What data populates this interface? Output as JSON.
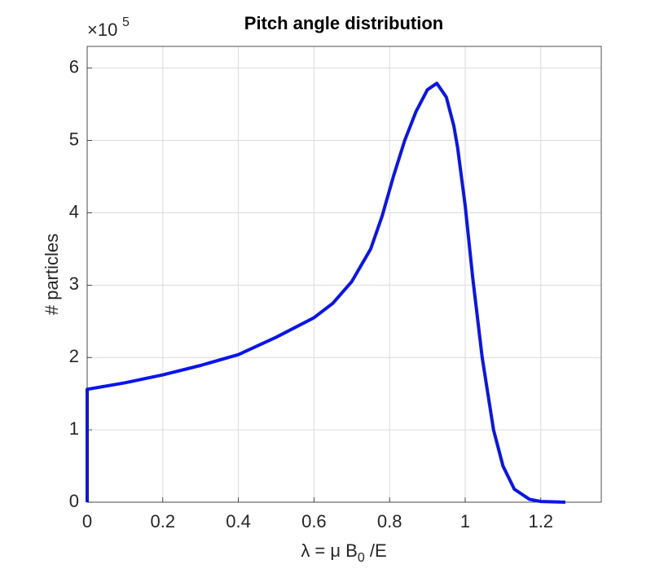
{
  "chart_data": {
    "type": "line",
    "title": "Pitch angle distribution",
    "xlabel": {
      "main": "λ = μ B",
      "sub": "0",
      "tail": " /E"
    },
    "ylabel": "# particles",
    "y_multiplier": {
      "base": "×10",
      "exponent": "5"
    },
    "x": [
      0,
      0,
      0.1,
      0.2,
      0.3,
      0.4,
      0.5,
      0.6,
      0.65,
      0.7,
      0.75,
      0.78,
      0.81,
      0.84,
      0.87,
      0.9,
      0.925,
      0.95,
      0.97,
      0.98,
      1.0,
      1.02,
      1.045,
      1.075,
      1.1,
      1.13,
      1.17,
      1.2,
      1.265
    ],
    "values": [
      0,
      1.56,
      1.65,
      1.76,
      1.89,
      2.04,
      2.28,
      2.55,
      2.75,
      3.05,
      3.5,
      3.95,
      4.5,
      5.0,
      5.4,
      5.7,
      5.79,
      5.6,
      5.2,
      4.9,
      4.1,
      3.1,
      2.0,
      1.0,
      0.5,
      0.18,
      0.04,
      0.01,
      0
    ],
    "color": "#0a14f0",
    "xlim": [
      0,
      1.36
    ],
    "ylim": [
      0,
      6.3
    ],
    "xticks": [
      0,
      0.2,
      0.4,
      0.6,
      0.8,
      1,
      1.2
    ],
    "yticks": [
      0,
      1,
      2,
      3,
      4,
      5,
      6
    ],
    "grid": true
  }
}
